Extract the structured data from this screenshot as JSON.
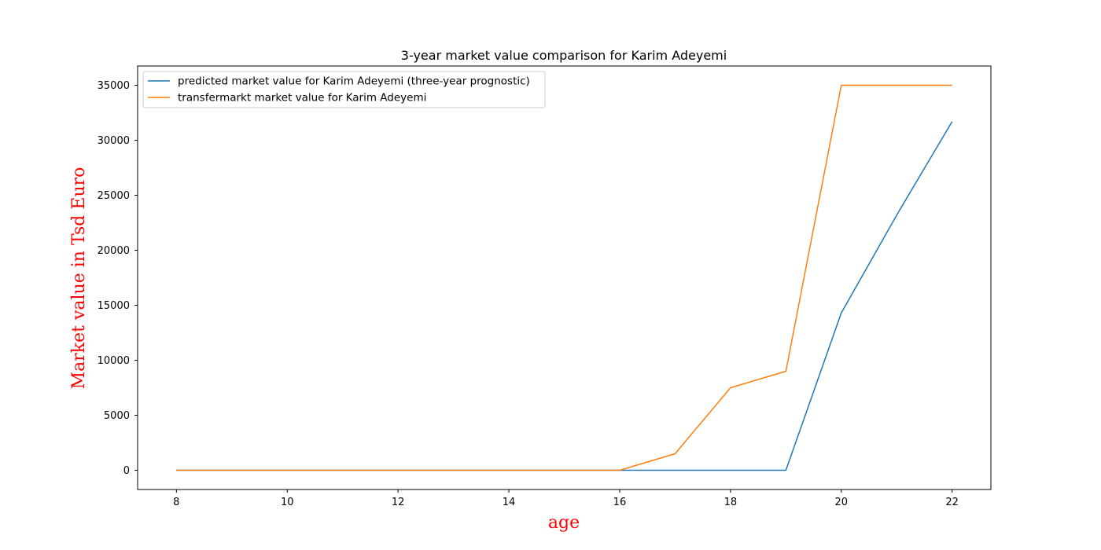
{
  "chart_data": {
    "type": "line",
    "title": "3-year market value comparison for Karim Adeyemi",
    "xlabel": "age",
    "ylabel": "Market value in Tsd Euro",
    "xlim": [
      7.3,
      22.7
    ],
    "ylim": [
      -1750,
      36750
    ],
    "xticks": [
      8,
      10,
      12,
      14,
      16,
      18,
      20,
      22
    ],
    "yticks": [
      0,
      5000,
      10000,
      15000,
      20000,
      25000,
      30000,
      35000
    ],
    "grid": false,
    "legend_position": "top-left",
    "label_color": "#ff0000",
    "series": [
      {
        "name": "predicted market value for Karim Adeyemi (three-year prognostic)",
        "color": "#1f77b4",
        "x": [
          8,
          9,
          10,
          11,
          12,
          13,
          14,
          15,
          16,
          17,
          18,
          19,
          20,
          21,
          22
        ],
        "y": [
          0,
          0,
          0,
          0,
          0,
          0,
          0,
          0,
          0,
          0,
          0,
          0,
          14300,
          23200,
          31700
        ]
      },
      {
        "name": "transfermarkt market value for Karim Adeyemi",
        "color": "#ff7f0e",
        "x": [
          8,
          9,
          10,
          11,
          12,
          13,
          14,
          15,
          16,
          17,
          18,
          19,
          20,
          21,
          22
        ],
        "y": [
          0,
          0,
          0,
          0,
          0,
          0,
          0,
          0,
          0,
          1500,
          7500,
          9000,
          35000,
          35000,
          35000
        ]
      }
    ]
  }
}
